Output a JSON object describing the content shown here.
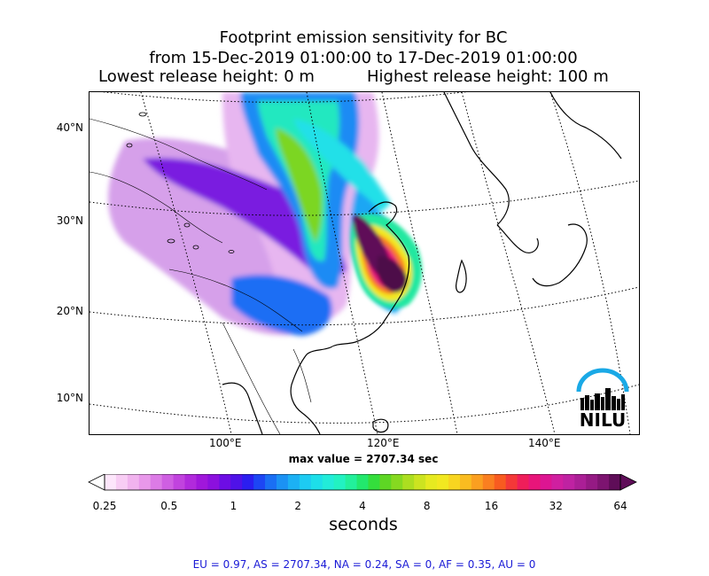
{
  "title": {
    "line1": "Footprint emission sensitivity for BC",
    "line2": "from 15-Dec-2019 01:00:00 to 17-Dec-2019 01:00:00",
    "lowest": "Lowest release height: 0 m",
    "highest": "Highest release height: 100 m"
  },
  "map": {
    "lat_labels": [
      "40°N",
      "30°N",
      "20°N",
      "10°N"
    ],
    "lon_labels": [
      "100°E",
      "120°E",
      "140°E"
    ],
    "max_value": "max value = 2707.34 sec"
  },
  "colorbar": {
    "ticks": [
      "0.25",
      "0.5",
      "1",
      "2",
      "4",
      "8",
      "16",
      "32",
      "64"
    ],
    "unit": "seconds",
    "scale": "log2",
    "colors": [
      "#fde6fb",
      "#f8cdf4",
      "#f1b3ee",
      "#e898ea",
      "#dc7be6",
      "#cf5fe2",
      "#c143de",
      "#b12adc",
      "#a017db",
      "#8c10de",
      "#6d0de4",
      "#4f12e8",
      "#2b1ef0",
      "#1d46f4",
      "#1a6ff4",
      "#1b92f4",
      "#1cb1f4",
      "#1dcbf2",
      "#1ddfe9",
      "#22ecd9",
      "#22f2c2",
      "#22f09b",
      "#22e86d",
      "#34de3c",
      "#5ed624",
      "#86d920",
      "#acde20",
      "#cce420",
      "#e6ea20",
      "#f2e820",
      "#f8d520",
      "#fabc20",
      "#fb9f20",
      "#fa7f20",
      "#f85b20",
      "#f43838",
      "#ef1e5a",
      "#e8157a",
      "#dd1592",
      "#d01fa0",
      "#bf22a2",
      "#ab1f96",
      "#951a84",
      "#7d1470",
      "#5f0d58"
    ]
  },
  "summary": "EU = 0.97,  AS = 2707.34,  NA = 0.24,  SA = 0,  AF = 0.35,  AU = 0",
  "logo": {
    "text": "NILU",
    "arc_color": "#1aa9e6"
  }
}
